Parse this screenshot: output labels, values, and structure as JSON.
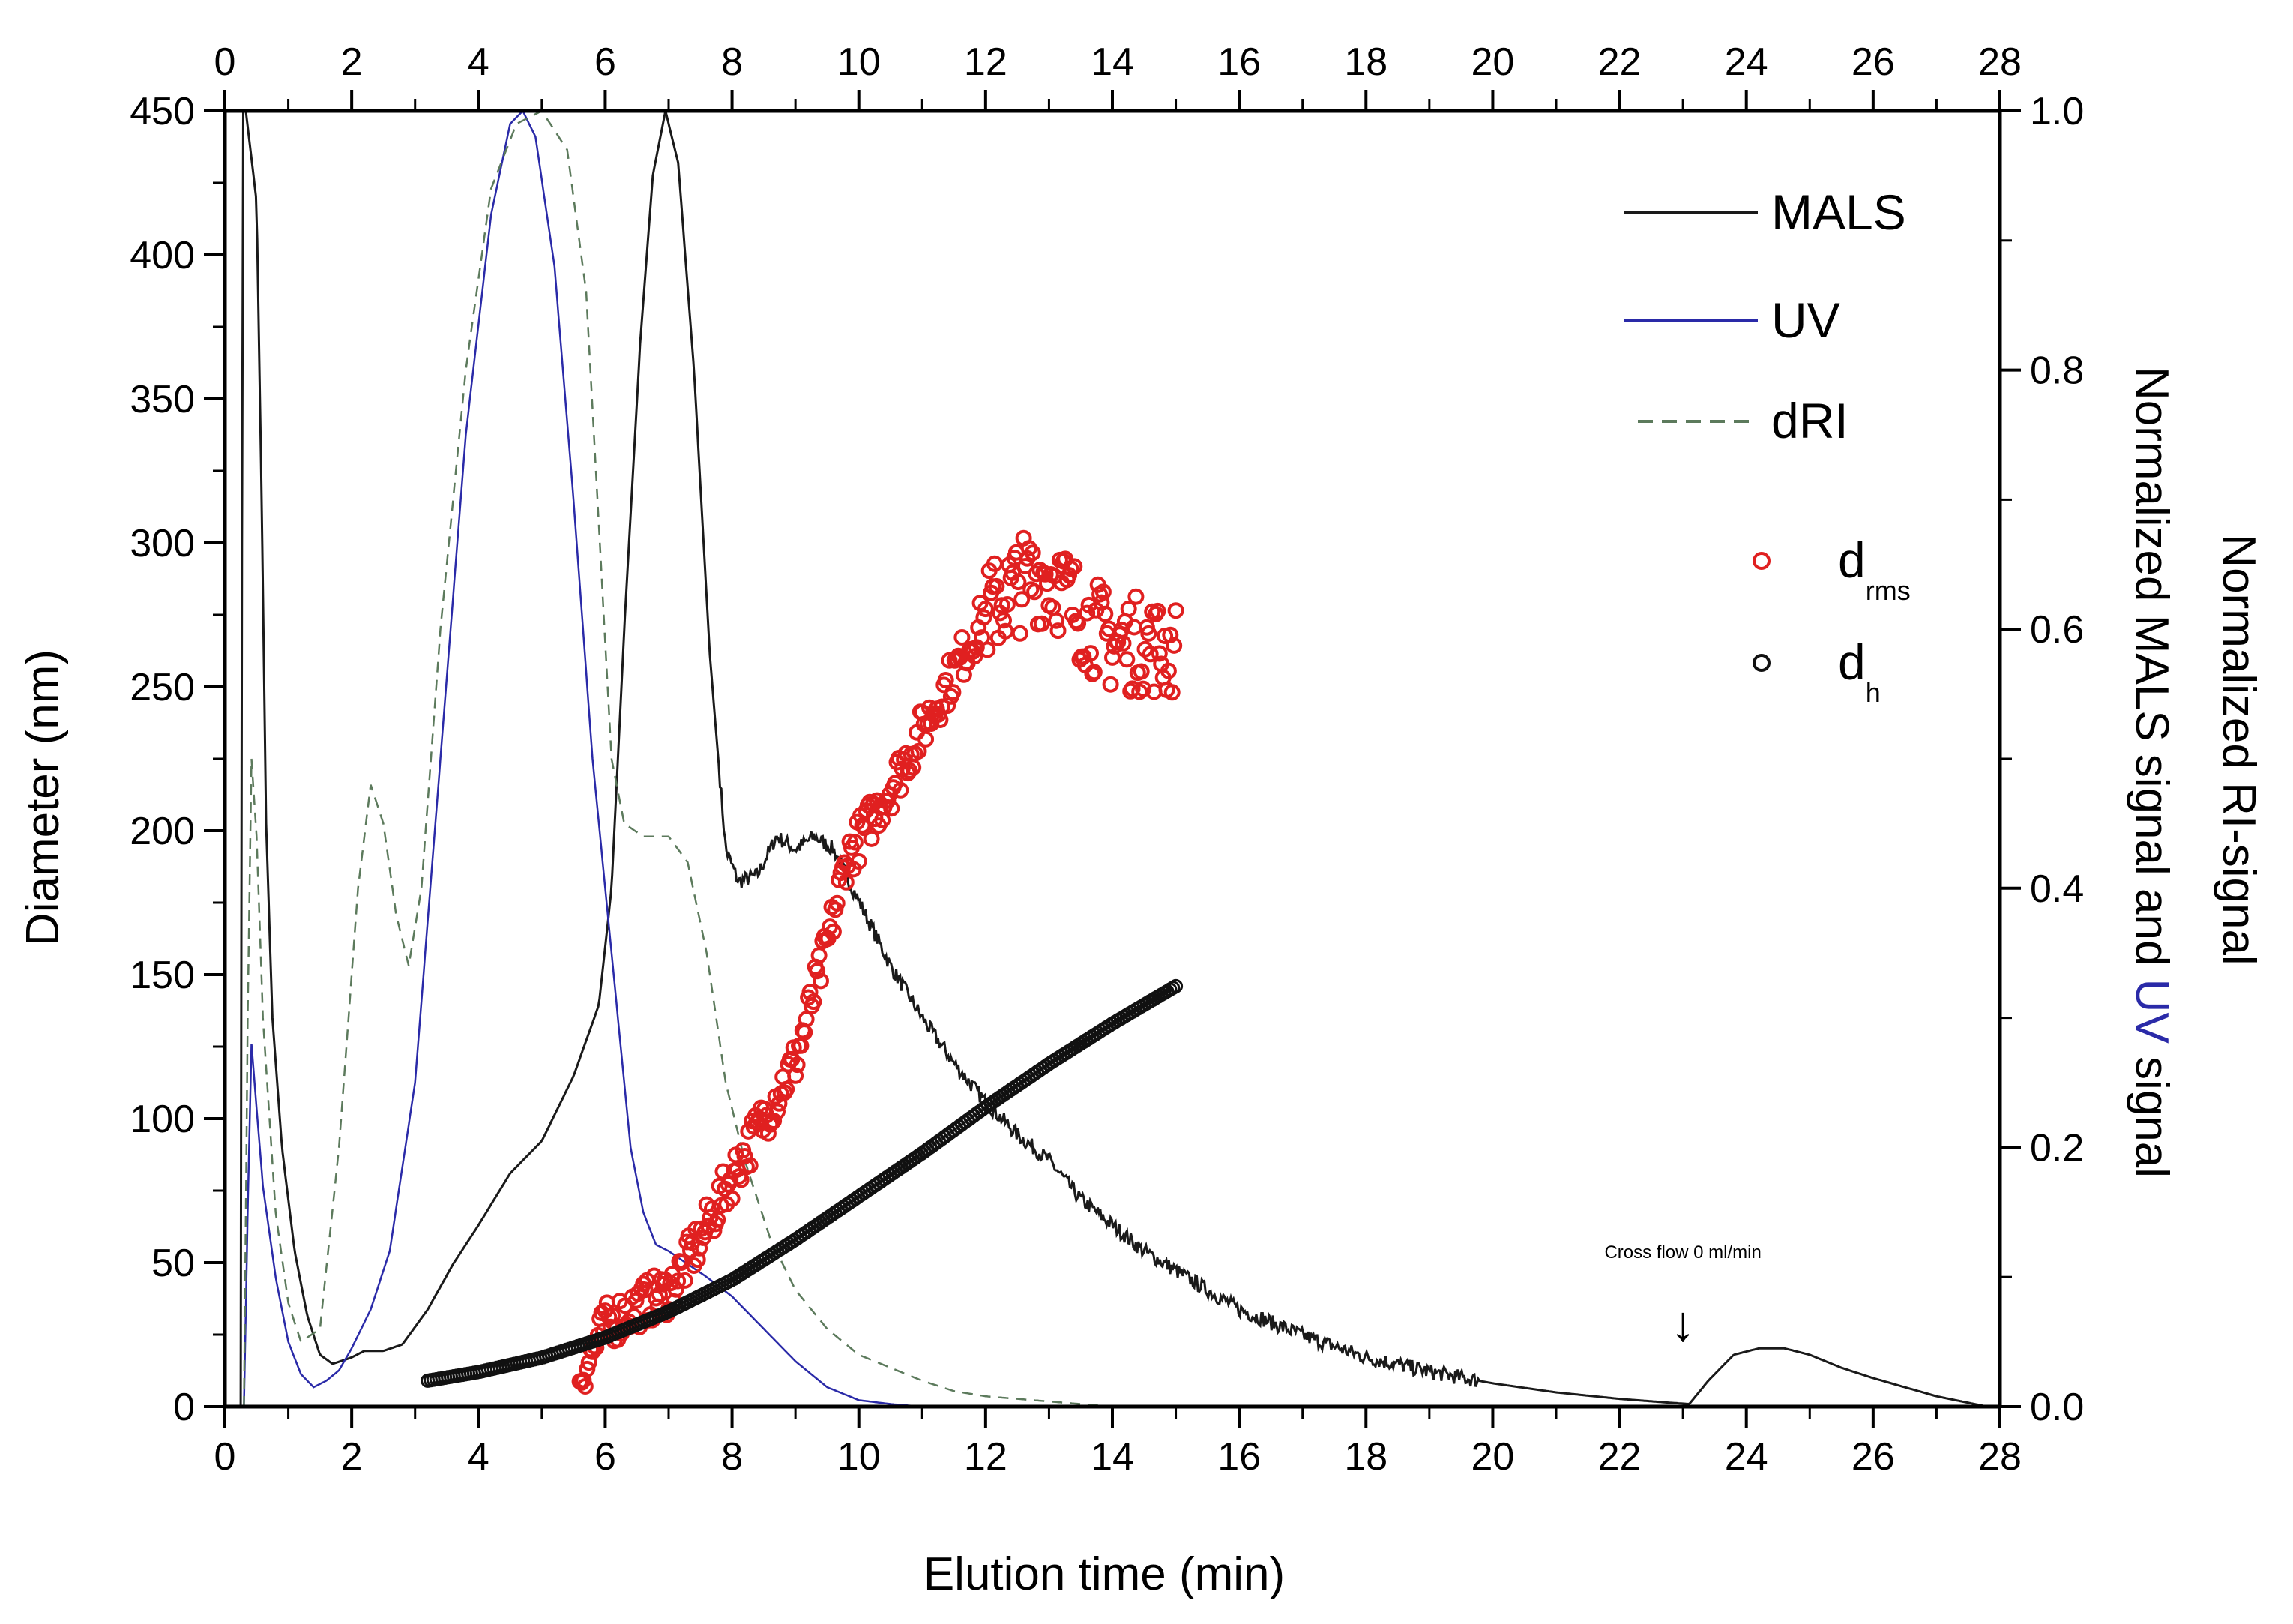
{
  "chart_data": {
    "type": "line",
    "title": "",
    "xlabel": "Elution time (min)",
    "ylabel_left": "Diameter (nm)",
    "ylabel_right_parts": [
      {
        "text": "Normalized MALS signal and ",
        "color": "#000000"
      },
      {
        "text": "UV",
        "color": "#2a2aa8"
      },
      {
        "text": " signal",
        "color": "#000000"
      }
    ],
    "ylabel_right2": "Normalized RI-signal",
    "xlim": [
      0,
      28
    ],
    "ylim_left": [
      0,
      450
    ],
    "ylim_right": [
      0,
      1.0
    ],
    "x_ticks": [
      "0",
      "2",
      "4",
      "6",
      "8",
      "10",
      "12",
      "14",
      "16",
      "18",
      "20",
      "22",
      "24",
      "26",
      "28"
    ],
    "x_top_ticks": [
      "0",
      "2",
      "4",
      "6",
      "8",
      "10",
      "12",
      "14",
      "16",
      "18",
      "20",
      "22",
      "24",
      "26",
      "28"
    ],
    "y_left_ticks": [
      "0",
      "50",
      "100",
      "150",
      "200",
      "250",
      "300",
      "350",
      "400",
      "450"
    ],
    "y_right_ticks": [
      "0.0",
      "0.2",
      "0.4",
      "0.6",
      "0.8",
      "1.0"
    ],
    "colors": {
      "mals": "#1a1a1a",
      "uv": "#2a2aa8",
      "dri": "#5c7a5c",
      "drms": "#e02020",
      "dh": "#111111",
      "green_label": "#2e8b2e"
    },
    "legend": {
      "mals": "MALS",
      "uv": "UV",
      "dri": "dRI",
      "drms_main": "d",
      "drms_sub": "rms",
      "dh_main": "d",
      "dh_sub": "h"
    },
    "annotation": {
      "text": "Cross flow 0 ml/min",
      "x": 23.0,
      "arrow": "↓"
    },
    "series": [
      {
        "name": "MALS",
        "axis": "right",
        "style": "solid",
        "noise": true,
        "points": [
          [
            0.25,
            0
          ],
          [
            0.28,
            1.0
          ],
          [
            0.33,
            1.0
          ],
          [
            0.5,
            0.93
          ],
          [
            0.58,
            0.7
          ],
          [
            0.65,
            0.45
          ],
          [
            0.75,
            0.3
          ],
          [
            0.9,
            0.2
          ],
          [
            1.1,
            0.12
          ],
          [
            1.3,
            0.07
          ],
          [
            1.5,
            0.04
          ],
          [
            1.7,
            0.033
          ],
          [
            2.0,
            0.038
          ],
          [
            2.2,
            0.043
          ],
          [
            2.5,
            0.043
          ],
          [
            2.8,
            0.048
          ],
          [
            3.2,
            0.075
          ],
          [
            3.6,
            0.11
          ],
          [
            4.0,
            0.14
          ],
          [
            4.5,
            0.18
          ],
          [
            5.0,
            0.205
          ],
          [
            5.5,
            0.255
          ],
          [
            5.9,
            0.31
          ],
          [
            6.1,
            0.4
          ],
          [
            6.3,
            0.6
          ],
          [
            6.55,
            0.82
          ],
          [
            6.75,
            0.95
          ],
          [
            6.95,
            1.0
          ],
          [
            7.15,
            0.96
          ],
          [
            7.4,
            0.8
          ],
          [
            7.65,
            0.58
          ],
          [
            7.9,
            0.43
          ],
          [
            8.1,
            0.405
          ],
          [
            8.4,
            0.41
          ],
          [
            8.7,
            0.44
          ],
          [
            9.0,
            0.43
          ],
          [
            9.3,
            0.44
          ],
          [
            9.6,
            0.43
          ],
          [
            10.0,
            0.39
          ],
          [
            10.5,
            0.34
          ],
          [
            11.0,
            0.3
          ],
          [
            11.5,
            0.265
          ],
          [
            12.0,
            0.235
          ],
          [
            12.5,
            0.21
          ],
          [
            13.0,
            0.19
          ],
          [
            13.5,
            0.16
          ],
          [
            14.0,
            0.14
          ],
          [
            14.5,
            0.12
          ],
          [
            15.0,
            0.105
          ],
          [
            15.5,
            0.09
          ],
          [
            16.0,
            0.075
          ],
          [
            17.0,
            0.055
          ],
          [
            18.0,
            0.038
          ],
          [
            19.0,
            0.027
          ],
          [
            20.0,
            0.018
          ],
          [
            21.0,
            0.011
          ],
          [
            22.0,
            0.006
          ],
          [
            22.8,
            0.003
          ],
          [
            23.1,
            0.002
          ],
          [
            23.4,
            0.02
          ],
          [
            23.8,
            0.04
          ],
          [
            24.2,
            0.045
          ],
          [
            24.6,
            0.045
          ],
          [
            25.0,
            0.04
          ],
          [
            25.5,
            0.03
          ],
          [
            26.0,
            0.022
          ],
          [
            26.5,
            0.015
          ],
          [
            27.0,
            0.008
          ],
          [
            27.5,
            0.003
          ],
          [
            27.8,
            0.0
          ]
        ]
      },
      {
        "name": "UV",
        "axis": "right",
        "style": "solid",
        "noise": false,
        "points": [
          [
            0.3,
            0
          ],
          [
            0.36,
            0.15
          ],
          [
            0.42,
            0.28
          ],
          [
            0.5,
            0.23
          ],
          [
            0.6,
            0.17
          ],
          [
            0.8,
            0.1
          ],
          [
            1.0,
            0.05
          ],
          [
            1.2,
            0.025
          ],
          [
            1.4,
            0.015
          ],
          [
            1.6,
            0.02
          ],
          [
            1.8,
            0.028
          ],
          [
            2.0,
            0.045
          ],
          [
            2.3,
            0.075
          ],
          [
            2.6,
            0.12
          ],
          [
            3.0,
            0.25
          ],
          [
            3.4,
            0.5
          ],
          [
            3.8,
            0.75
          ],
          [
            4.2,
            0.92
          ],
          [
            4.5,
            0.99
          ],
          [
            4.7,
            1.0
          ],
          [
            4.9,
            0.98
          ],
          [
            5.2,
            0.88
          ],
          [
            5.5,
            0.7
          ],
          [
            5.8,
            0.5
          ],
          [
            6.0,
            0.4
          ],
          [
            6.2,
            0.3
          ],
          [
            6.4,
            0.2
          ],
          [
            6.6,
            0.15
          ],
          [
            6.8,
            0.125
          ],
          [
            7.0,
            0.12
          ],
          [
            7.3,
            0.11
          ],
          [
            7.6,
            0.1
          ],
          [
            8.0,
            0.085
          ],
          [
            8.5,
            0.06
          ],
          [
            9.0,
            0.035
          ],
          [
            9.5,
            0.015
          ],
          [
            10.0,
            0.005
          ],
          [
            10.5,
            0.002
          ],
          [
            11.0,
            0.0
          ],
          [
            28.0,
            0.0
          ]
        ]
      },
      {
        "name": "dRI",
        "axis": "right",
        "style": "dashed",
        "noise": false,
        "points": [
          [
            0.3,
            0
          ],
          [
            0.36,
            0.3
          ],
          [
            0.42,
            0.5
          ],
          [
            0.5,
            0.44
          ],
          [
            0.6,
            0.3
          ],
          [
            0.8,
            0.15
          ],
          [
            1.0,
            0.08
          ],
          [
            1.2,
            0.05
          ],
          [
            1.5,
            0.06
          ],
          [
            1.8,
            0.2
          ],
          [
            2.1,
            0.4
          ],
          [
            2.3,
            0.48
          ],
          [
            2.5,
            0.45
          ],
          [
            2.7,
            0.38
          ],
          [
            2.9,
            0.34
          ],
          [
            3.1,
            0.4
          ],
          [
            3.4,
            0.6
          ],
          [
            3.8,
            0.8
          ],
          [
            4.2,
            0.94
          ],
          [
            4.6,
            0.99
          ],
          [
            5.0,
            1.0
          ],
          [
            5.4,
            0.97
          ],
          [
            5.7,
            0.86
          ],
          [
            5.9,
            0.68
          ],
          [
            6.1,
            0.5
          ],
          [
            6.3,
            0.45
          ],
          [
            6.6,
            0.44
          ],
          [
            7.0,
            0.44
          ],
          [
            7.3,
            0.42
          ],
          [
            7.6,
            0.35
          ],
          [
            7.9,
            0.25
          ],
          [
            8.2,
            0.19
          ],
          [
            8.6,
            0.13
          ],
          [
            9.0,
            0.09
          ],
          [
            9.5,
            0.06
          ],
          [
            10.0,
            0.04
          ],
          [
            10.5,
            0.03
          ],
          [
            11.0,
            0.02
          ],
          [
            11.5,
            0.012
          ],
          [
            12.0,
            0.008
          ],
          [
            13.0,
            0.004
          ],
          [
            14.0,
            0.0
          ],
          [
            28.0,
            0.0
          ]
        ]
      },
      {
        "name": "d_rms",
        "axis": "left",
        "style": "markers",
        "noise": true,
        "x_range": [
          5.6,
          15.0
        ],
        "points": [
          [
            5.6,
            10
          ],
          [
            6.0,
            28
          ],
          [
            6.5,
            35
          ],
          [
            7.0,
            40
          ],
          [
            7.5,
            58
          ],
          [
            8.0,
            80
          ],
          [
            8.5,
            100
          ],
          [
            9.0,
            120
          ],
          [
            9.5,
            160
          ],
          [
            9.8,
            190
          ],
          [
            10.5,
            215
          ],
          [
            11.0,
            235
          ],
          [
            11.5,
            255
          ],
          [
            12.0,
            275
          ],
          [
            12.5,
            285
          ],
          [
            13.0,
            290
          ],
          [
            13.5,
            275
          ],
          [
            14.0,
            265
          ],
          [
            14.5,
            265
          ],
          [
            15.0,
            262
          ]
        ]
      },
      {
        "name": "d_h",
        "axis": "left",
        "style": "markers",
        "noise": false,
        "x_range": [
          3.2,
          15.0
        ],
        "points": [
          [
            3.2,
            9
          ],
          [
            4.0,
            12
          ],
          [
            5.0,
            17
          ],
          [
            6.0,
            24
          ],
          [
            7.0,
            33
          ],
          [
            8.0,
            44
          ],
          [
            9.0,
            58
          ],
          [
            10.0,
            73
          ],
          [
            11.0,
            88
          ],
          [
            12.0,
            104
          ],
          [
            13.0,
            119
          ],
          [
            14.0,
            133
          ],
          [
            15.0,
            146
          ]
        ]
      }
    ]
  }
}
